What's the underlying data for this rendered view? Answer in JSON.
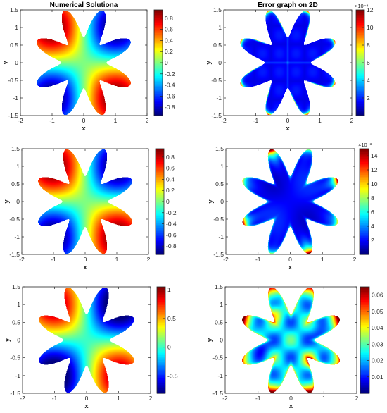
{
  "chart_data": [
    {
      "type": "heatmap",
      "title": "Numerical Solutiona",
      "xlabel": "x",
      "ylabel": "y",
      "xlim": [
        -2,
        2
      ],
      "ylim": [
        -1.5,
        1.5
      ],
      "xticks": [
        "-2",
        "-1",
        "0",
        "1",
        "2"
      ],
      "yticks": [
        "1.5",
        "1",
        "0.5",
        "0",
        "-0.5",
        "-1",
        "-1.5"
      ],
      "colorbar": {
        "range": [
          -0.95,
          0.95
        ],
        "ticks": [
          "0.8",
          "0.6",
          "0.4",
          "0.2",
          "0",
          "-0.2",
          "-0.4",
          "-0.6",
          "-0.8"
        ],
        "exponent": ""
      },
      "colormap": "jet",
      "field": "solution"
    },
    {
      "type": "heatmap",
      "title": "Error graph on 2D",
      "xlabel": "x",
      "ylabel": "y",
      "xlim": [
        -2,
        2
      ],
      "ylim": [
        -1.5,
        1.5
      ],
      "xticks": [
        "-2",
        "-1",
        "0",
        "1",
        "2"
      ],
      "yticks": [
        "1.5",
        "1",
        "0.5",
        "0",
        "-0.5",
        "-1",
        "-1.5"
      ],
      "colorbar": {
        "range": [
          0,
          12
        ],
        "ticks": [
          "12",
          "10",
          "8",
          "6",
          "4",
          "2"
        ],
        "exponent": "×10⁻⁴"
      },
      "colormap": "jet",
      "field": "error-boundary"
    },
    {
      "type": "heatmap",
      "title": "",
      "xlabel": "x",
      "ylabel": "y",
      "xlim": [
        -2,
        2
      ],
      "ylim": [
        -1.5,
        1.5
      ],
      "xticks": [
        "-2",
        "-1",
        "0",
        "1",
        "2"
      ],
      "yticks": [
        "1.5",
        "1",
        "0.5",
        "0",
        "-0.5",
        "-1",
        "-1.5"
      ],
      "colorbar": {
        "range": [
          -0.95,
          0.95
        ],
        "ticks": [
          "0.8",
          "0.6",
          "0.4",
          "0.2",
          "0",
          "-0.2",
          "-0.4",
          "-0.6",
          "-0.8"
        ],
        "exponent": ""
      },
      "colormap": "jet",
      "field": "solution"
    },
    {
      "type": "heatmap",
      "title": "",
      "xlabel": "x",
      "ylabel": "y",
      "xlim": [
        -2,
        2
      ],
      "ylim": [
        -1.5,
        1.5
      ],
      "xticks": [
        "-2",
        "-1",
        "0",
        "1",
        "2"
      ],
      "yticks": [
        "1.5",
        "1",
        "0.5",
        "0",
        "-0.5",
        "-1",
        "-1.5"
      ],
      "colorbar": {
        "range": [
          0,
          15
        ],
        "ticks": [
          "14",
          "12",
          "10",
          "8",
          "6",
          "4",
          "2"
        ],
        "exponent": "×10⁻³"
      },
      "colormap": "jet",
      "field": "error-tips"
    },
    {
      "type": "heatmap",
      "title": "",
      "xlabel": "x",
      "ylabel": "y",
      "xlim": [
        -2,
        2
      ],
      "ylim": [
        -1.5,
        1.5
      ],
      "xticks": [
        "-2",
        "-1",
        "0",
        "1",
        "2"
      ],
      "yticks": [
        "1.5",
        "1",
        "0.5",
        "0",
        "-0.5",
        "-1",
        "-1.5"
      ],
      "colorbar": {
        "range": [
          -0.8,
          1.05
        ],
        "ticks": [
          "1",
          "0.5",
          "0",
          "-0.5"
        ],
        "exponent": ""
      },
      "colormap": "jet",
      "field": "solution"
    },
    {
      "type": "heatmap",
      "title": "",
      "xlabel": "x",
      "ylabel": "y",
      "xlim": [
        -2,
        2
      ],
      "ylim": [
        -1.5,
        1.5
      ],
      "xticks": [
        "-2",
        "-1",
        "0",
        "1",
        "2"
      ],
      "yticks": [
        "1.5",
        "1",
        "0.5",
        "0",
        "-0.5",
        "-1",
        "-1.5"
      ],
      "colorbar": {
        "range": [
          0,
          0.065
        ],
        "ticks": [
          "0.06",
          "0.05",
          "0.04",
          "0.03",
          "0.02",
          "0.01"
        ],
        "exponent": ""
      },
      "colormap": "jet",
      "field": "error-blobs"
    }
  ]
}
